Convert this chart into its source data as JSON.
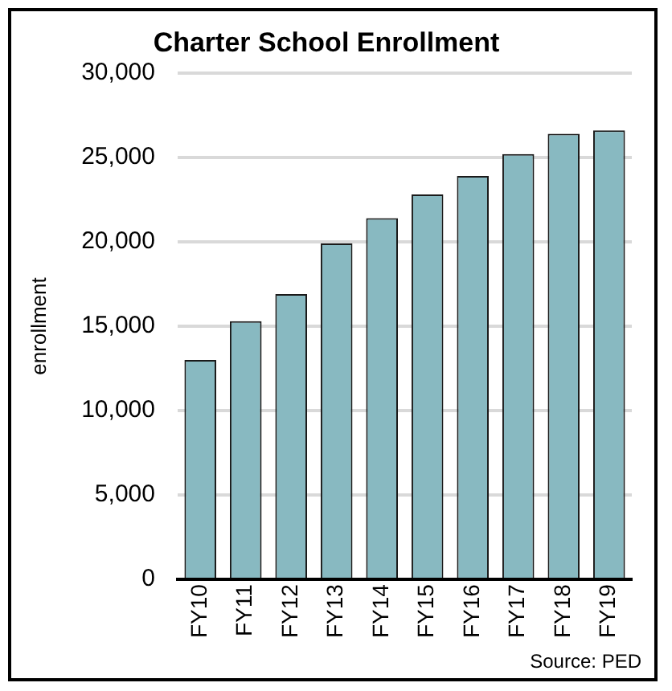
{
  "chart_data": {
    "type": "bar",
    "title": "Charter School Enrollment",
    "ylabel": "enrollment",
    "categories": [
      "FY10",
      "FY11",
      "FY12",
      "FY13",
      "FY14",
      "FY15",
      "FY16",
      "FY17",
      "FY18",
      "FY19"
    ],
    "values": [
      13000,
      15300,
      16900,
      19900,
      21400,
      22800,
      23900,
      25200,
      26400,
      26600
    ],
    "color": "#88b9c1",
    "ylim": [
      0,
      30000
    ],
    "yticks": [
      0,
      {
        "value": 5000,
        "label": "5,000"
      },
      {
        "value": 10000,
        "label": "10,000"
      },
      {
        "value": 15000,
        "label": "15,000"
      },
      {
        "value": 20000,
        "label": "20,000"
      },
      {
        "value": 25000,
        "label": "25,000"
      },
      {
        "value": 30000,
        "label": "30,000"
      }
    ],
    "grid": "y",
    "legend": false,
    "annotations": [
      "Source: PED"
    ]
  }
}
